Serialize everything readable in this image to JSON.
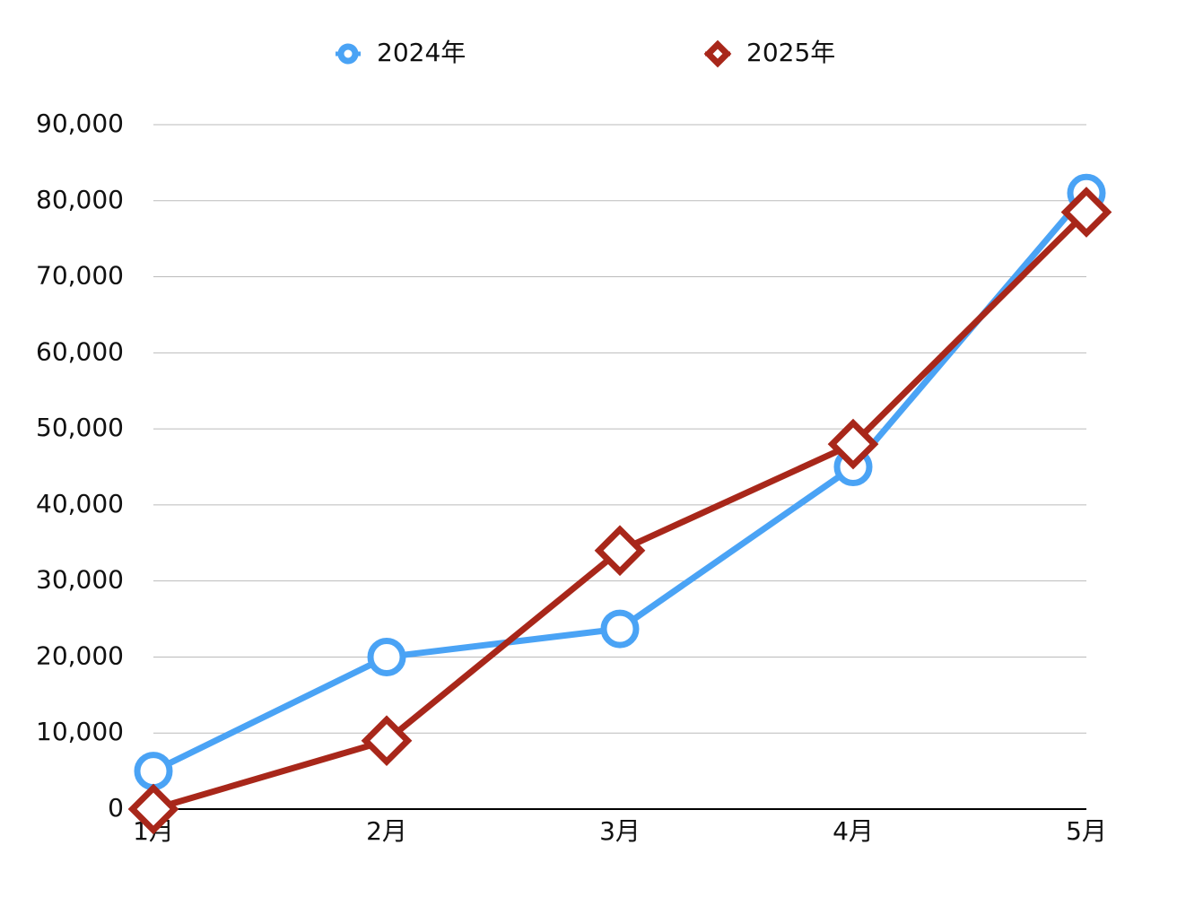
{
  "chart_data": {
    "type": "line",
    "categories": [
      "1月",
      "2月",
      "3月",
      "4月",
      "5月"
    ],
    "series": [
      {
        "name": "2024年",
        "color": "#4aa3f5",
        "marker": "circle",
        "values": [
          5000,
          20000,
          23700,
          45000,
          81000
        ]
      },
      {
        "name": "2025年",
        "color": "#a8271a",
        "marker": "diamond",
        "values": [
          0,
          9000,
          34000,
          48000,
          78500
        ]
      }
    ],
    "ylim": [
      0,
      90000
    ],
    "yticks": [
      0,
      {
        "value": 10000,
        "label": "10,000"
      },
      {
        "value": 20000,
        "label": "20,000"
      },
      {
        "value": 30000,
        "label": "30,000"
      },
      {
        "value": 40000,
        "label": "40,000"
      },
      {
        "value": 50000,
        "label": "50,000"
      },
      {
        "value": 60000,
        "label": "60,000"
      },
      {
        "value": 70000,
        "label": "70,000"
      },
      {
        "value": 80000,
        "label": "80,000"
      },
      {
        "value": 90000,
        "label": "90,000"
      }
    ],
    "grid": true,
    "legend": "top"
  }
}
